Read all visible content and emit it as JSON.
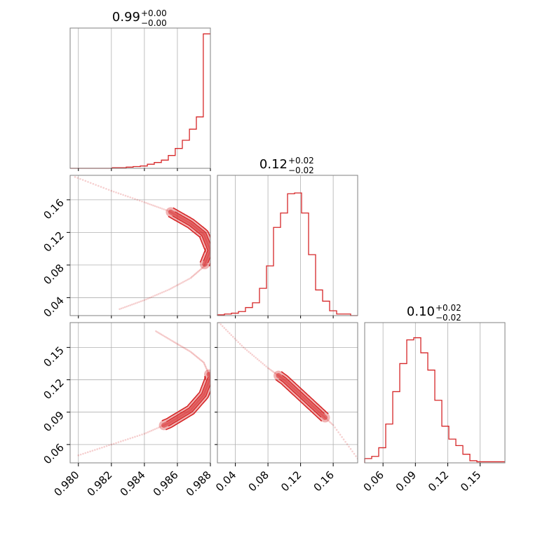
{
  "chart_data": {
    "type": "corner",
    "color": "#d62728",
    "grid": true,
    "params": [
      {
        "range": [
          0.9795,
          0.988
        ],
        "ticks": [
          0.98,
          0.982,
          0.984,
          0.986,
          0.988
        ],
        "tick_labels": [
          "0.980",
          "0.982",
          "0.984",
          "0.986",
          "0.988"
        ],
        "title_value": "0.99",
        "title_plus": "+0.00",
        "title_minus": "−0.00"
      },
      {
        "range": [
          0.018,
          0.19
        ],
        "ticks": [
          0.04,
          0.08,
          0.12,
          0.16
        ],
        "tick_labels": [
          "0.04",
          "0.08",
          "0.12",
          "0.16"
        ],
        "title_value": "0.12",
        "title_plus": "+0.02",
        "title_minus": "−0.02"
      },
      {
        "range": [
          0.043,
          0.173
        ],
        "ticks": [
          0.06,
          0.09,
          0.12,
          0.15
        ],
        "tick_labels": [
          "0.06",
          "0.09",
          "0.12",
          "0.15"
        ],
        "title_value": "0.10",
        "title_plus": "+0.02",
        "title_minus": "−0.02"
      }
    ],
    "histograms": [
      {
        "bin_edges": [
          0.9795,
          0.97992,
          0.98035,
          0.98077,
          0.9812,
          0.98162,
          0.98205,
          0.98248,
          0.9829,
          0.98332,
          0.98375,
          0.98418,
          0.9846,
          0.98503,
          0.98545,
          0.98587,
          0.9863,
          0.98673,
          0.98715,
          0.98757,
          0.988
        ],
        "counts": [
          0,
          0,
          0,
          0,
          0,
          0,
          1,
          1,
          2,
          3,
          4,
          7,
          10,
          14,
          22,
          34,
          48,
          67,
          88,
          230
        ],
        "ymax": 240
      },
      {
        "bin_edges": [
          0.018,
          0.0266,
          0.0352,
          0.0438,
          0.0524,
          0.061,
          0.0696,
          0.0782,
          0.0868,
          0.0954,
          0.104,
          0.1126,
          0.1212,
          0.1298,
          0.1384,
          0.147,
          0.1556,
          0.1642,
          0.1728,
          0.1814,
          0.19
        ],
        "counts": [
          1,
          2,
          3,
          5,
          10,
          16,
          34,
          62,
          110,
          128,
          152,
          153,
          128,
          76,
          32,
          18,
          6,
          2,
          2,
          0
        ],
        "ymax": 175
      },
      {
        "bin_edges": [
          0.043,
          0.0495,
          0.056,
          0.0625,
          0.069,
          0.0755,
          0.082,
          0.0885,
          0.095,
          0.1015,
          0.108,
          0.1145,
          0.121,
          0.1275,
          0.134,
          0.1405,
          0.147,
          0.1535,
          0.16,
          0.1665,
          0.173
        ],
        "counts": [
          4,
          6,
          14,
          36,
          66,
          92,
          114,
          116,
          102,
          86,
          58,
          34,
          22,
          16,
          8,
          2,
          1,
          1,
          1,
          1
        ],
        "ymax": 130
      }
    ],
    "pair_ridges": {
      "p1_p2": {
        "x": [
          0.9798,
          0.982,
          0.984,
          0.9855,
          0.9868,
          0.9876,
          0.988,
          0.9876,
          0.9868,
          0.9855,
          0.984,
          0.9825
        ],
        "y": [
          0.188,
          0.171,
          0.157,
          0.146,
          0.131,
          0.118,
          0.098,
          0.078,
          0.064,
          0.05,
          0.037,
          0.026
        ]
      },
      "p1_p3": {
        "x": [
          0.98,
          0.982,
          0.984,
          0.9855,
          0.9868,
          0.9876,
          0.988,
          0.9876,
          0.9868,
          0.9858,
          0.9847
        ],
        "y": [
          0.05,
          0.06,
          0.07,
          0.08,
          0.092,
          0.106,
          0.122,
          0.136,
          0.146,
          0.155,
          0.165
        ]
      },
      "p2_p3": {
        "x": [
          0.02,
          0.05,
          0.08,
          0.1,
          0.12,
          0.14,
          0.16,
          0.19
        ],
        "y": [
          0.173,
          0.15,
          0.131,
          0.12,
          0.106,
          0.092,
          0.078,
          0.047
        ]
      }
    }
  }
}
